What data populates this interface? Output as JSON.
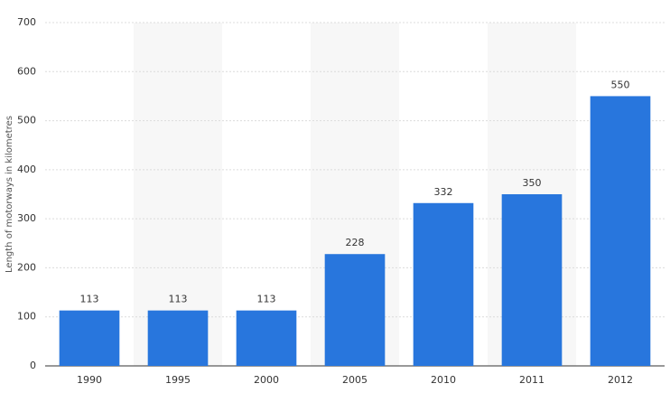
{
  "chart_data": {
    "type": "bar",
    "y_axis_label": "Length of motorways in kilometres",
    "categories": [
      "1990",
      "1995",
      "2000",
      "2005",
      "2010",
      "2011",
      "2012"
    ],
    "values": [
      113,
      113,
      113,
      228,
      332,
      350,
      550
    ],
    "color": "#2876dd",
    "ylim": [
      0,
      700
    ],
    "yticks": [
      0,
      100,
      200,
      300,
      400,
      500,
      600,
      700
    ],
    "grid": true
  }
}
